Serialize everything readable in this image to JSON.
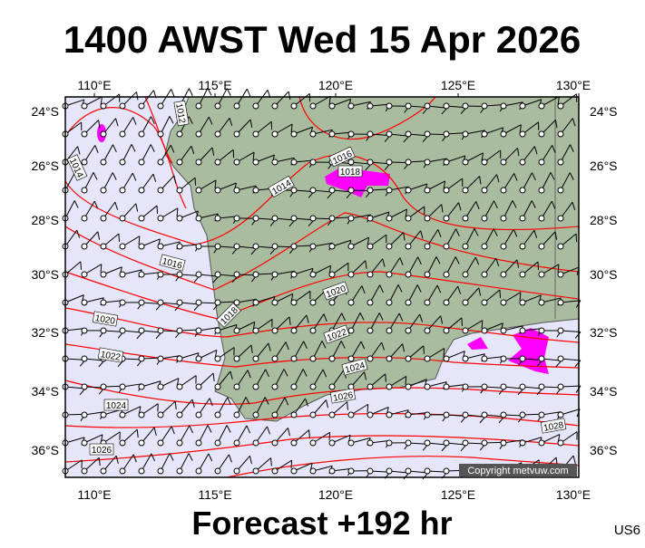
{
  "header": {
    "title": "1400 AWST Wed 15 Apr 2026"
  },
  "footer": {
    "forecast": "Forecast +192 hr",
    "model": "US6"
  },
  "copyright": "Copyright metvuw.com",
  "longitudes": [
    "110°E",
    "115°E",
    "120°E",
    "125°E",
    "130°E"
  ],
  "latitudes": [
    "24°S",
    "26°S",
    "28°S",
    "30°S",
    "32°S",
    "34°S",
    "36°S"
  ],
  "isobar_labels": [
    "1012",
    "1014",
    "1016",
    "1018",
    "1014",
    "1016",
    "1020",
    "1018",
    "1020",
    "1022",
    "1022",
    "1024",
    "1024",
    "1026",
    "1026",
    "1028"
  ]
}
